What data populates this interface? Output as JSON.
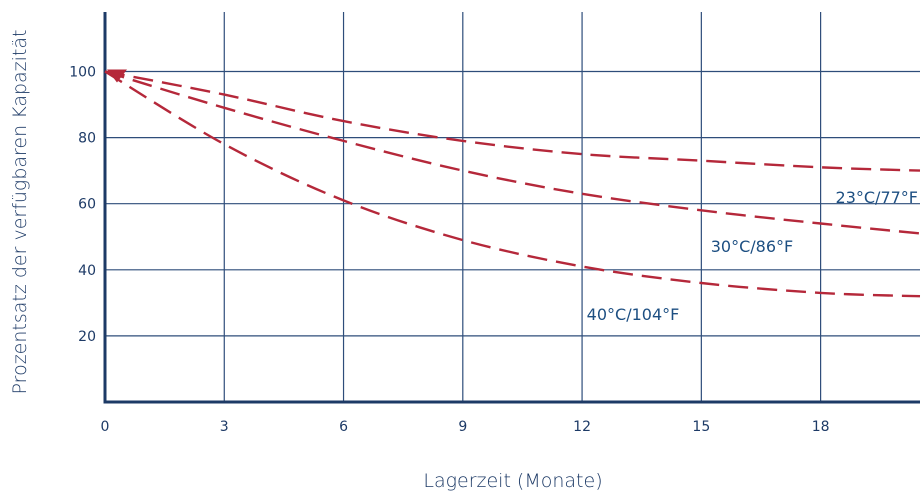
{
  "chart_data": {
    "type": "line",
    "title": "",
    "xlabel": "Lagerzeit (Monate)",
    "ylabel": "Prozentsatz der verfügbaren Kapazität",
    "xlim": [
      0,
      20.5
    ],
    "ylim": [
      0,
      118
    ],
    "x_ticks": [
      0,
      3,
      6,
      9,
      12,
      15,
      18
    ],
    "y_ticks": [
      20,
      40,
      60,
      80,
      100
    ],
    "grid": true,
    "series": [
      {
        "name": "23°C/77°F",
        "color": "#b5283a",
        "x": [
          0,
          3,
          6,
          9,
          12,
          15,
          18,
          20.5
        ],
        "y": [
          100,
          93,
          85,
          79,
          75,
          73,
          71,
          70
        ]
      },
      {
        "name": "30°C/86°F",
        "color": "#b5283a",
        "x": [
          0,
          3,
          6,
          9,
          12,
          15,
          18,
          20.5
        ],
        "y": [
          100,
          89,
          79,
          70,
          63,
          58,
          54,
          51
        ]
      },
      {
        "name": "40°C/104°F",
        "color": "#b5283a",
        "x": [
          0,
          3,
          6,
          9,
          12,
          15,
          18,
          20.5
        ],
        "y": [
          100,
          78,
          61,
          49,
          41,
          36,
          33,
          32
        ]
      }
    ]
  }
}
